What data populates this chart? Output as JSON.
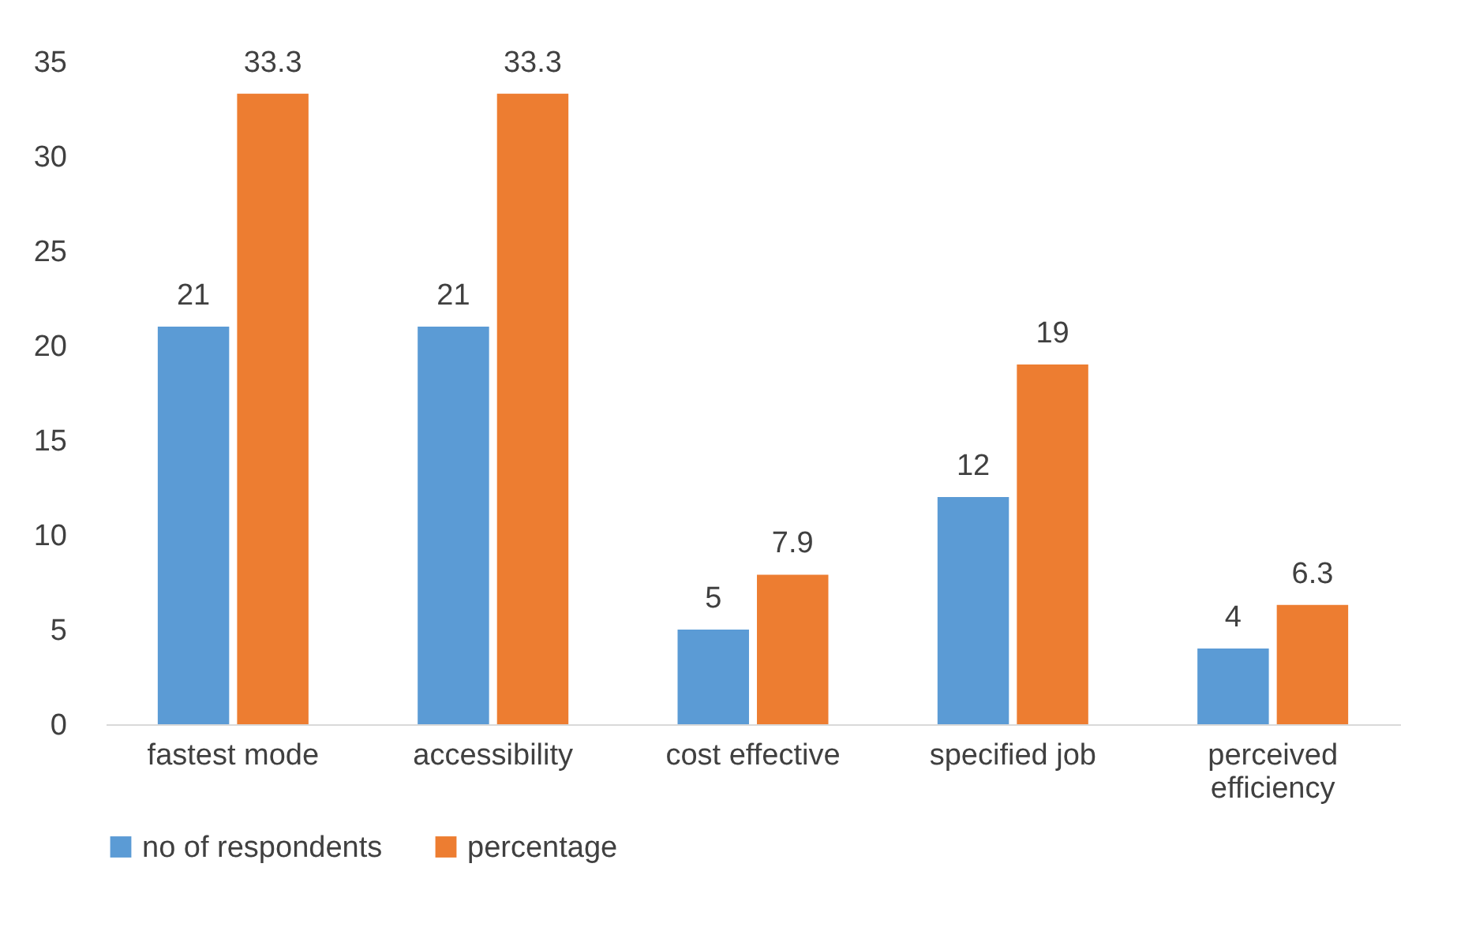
{
  "chart_data": {
    "type": "bar",
    "categories": [
      "fastest mode",
      "accessibility",
      "cost effective",
      "specified job",
      "perceived efficiency"
    ],
    "series": [
      {
        "name": "no of respondents",
        "color": "#5b9bd5",
        "values": [
          21,
          21,
          5,
          12,
          4
        ]
      },
      {
        "name": "percentage",
        "color": "#ed7d31",
        "values": [
          33.3,
          33.3,
          7.9,
          19,
          6.3
        ]
      }
    ],
    "ylim": [
      0,
      35
    ],
    "yticks": [
      0,
      5,
      10,
      15,
      20,
      25,
      30,
      35
    ],
    "grid": false,
    "legend": "bottom",
    "data_labels": true
  }
}
